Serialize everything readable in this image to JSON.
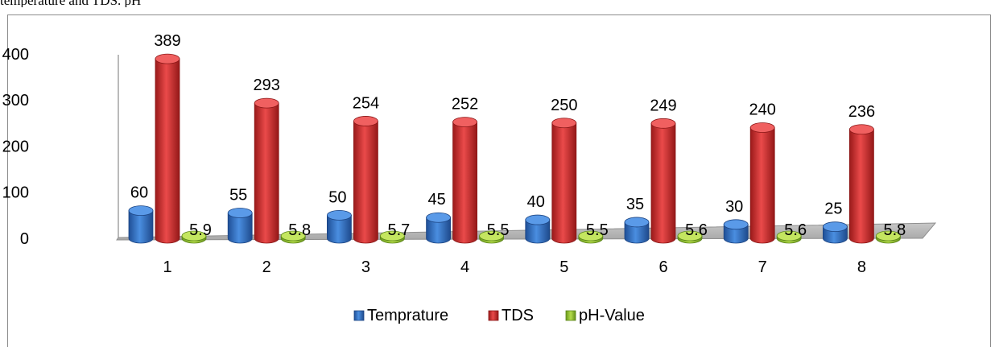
{
  "page": {
    "caption_fragment": "temperature and TDS. pH"
  },
  "chart_data": {
    "type": "bar",
    "title": "",
    "xlabel": "",
    "ylabel": "",
    "categories": [
      "1",
      "2",
      "3",
      "4",
      "5",
      "6",
      "7",
      "8"
    ],
    "ylim": [
      0,
      400
    ],
    "yticks": [
      "0",
      "100",
      "200",
      "300",
      "400"
    ],
    "grid": false,
    "legend_position": "bottom",
    "series": [
      {
        "name": "Temprature",
        "color": "#2f6fc4",
        "values": [
          60,
          55,
          50,
          45,
          40,
          35,
          30,
          25
        ],
        "labels": [
          "60",
          "55",
          "50",
          "45",
          "40",
          "35",
          "30",
          "25"
        ]
      },
      {
        "name": "TDS",
        "color": "#d93232",
        "values": [
          389,
          293,
          254,
          252,
          250,
          249,
          240,
          236
        ],
        "labels": [
          "389",
          "293",
          "254",
          "252",
          "250",
          "249",
          "240",
          "236"
        ]
      },
      {
        "name": "pH-Value",
        "color": "#8fbf2e",
        "values": [
          5.9,
          5.8,
          5.7,
          5.5,
          5.5,
          5.6,
          5.6,
          5.8
        ],
        "labels": [
          "5.9",
          "5.8",
          "5.7",
          "5.5",
          "5.5",
          "5.6",
          "5.6",
          "5.8"
        ]
      }
    ]
  }
}
